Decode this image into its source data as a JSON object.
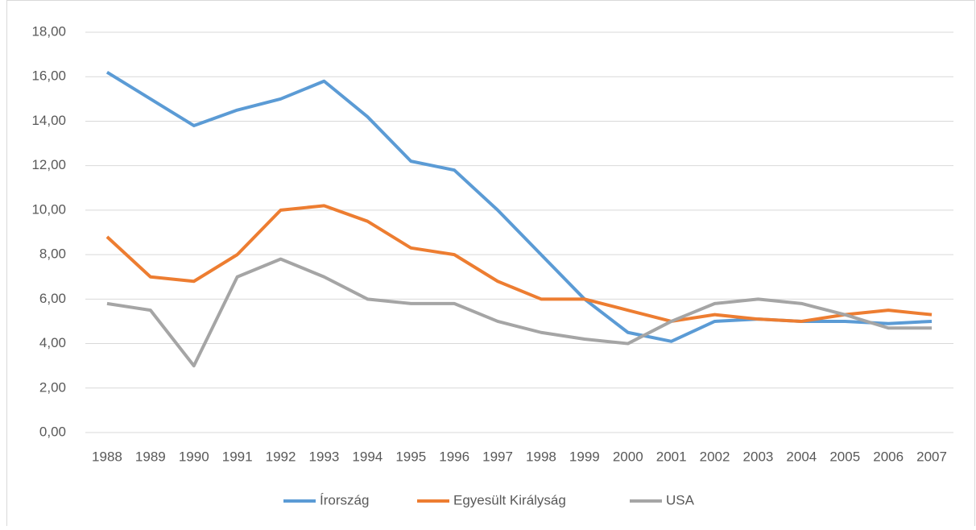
{
  "chart_data": {
    "type": "line",
    "categories": [
      "1988",
      "1989",
      "1990",
      "1991",
      "1992",
      "1993",
      "1994",
      "1995",
      "1996",
      "1997",
      "1998",
      "1999",
      "2000",
      "2001",
      "2002",
      "2003",
      "2004",
      "2005",
      "2006",
      "2007"
    ],
    "series": [
      {
        "name": "Írország",
        "color": "#5b9bd5",
        "values": [
          16.2,
          15.0,
          13.8,
          14.5,
          15.0,
          15.8,
          14.2,
          12.2,
          11.8,
          10.0,
          8.0,
          6.0,
          4.5,
          4.1,
          5.0,
          5.1,
          5.0,
          5.0,
          4.9,
          5.0
        ]
      },
      {
        "name": "Egyesült Királyság",
        "color": "#ed7d31",
        "values": [
          8.8,
          7.0,
          6.8,
          8.0,
          10.0,
          10.2,
          9.5,
          8.3,
          8.0,
          6.8,
          6.0,
          6.0,
          5.5,
          5.0,
          5.3,
          5.1,
          5.0,
          5.3,
          5.5,
          5.3
        ]
      },
      {
        "name": "USA",
        "color": "#a5a5a5",
        "values": [
          5.8,
          5.5,
          3.0,
          7.0,
          7.8,
          7.0,
          6.0,
          5.8,
          5.8,
          5.0,
          4.5,
          4.2,
          4.0,
          5.0,
          5.8,
          6.0,
          5.8,
          5.3,
          4.7,
          4.7
        ]
      }
    ],
    "ylim": [
      0,
      18
    ],
    "yticks": [
      {
        "value": 0,
        "label": "0,00"
      },
      {
        "value": 2,
        "label": "2,00"
      },
      {
        "value": 4,
        "label": "4,00"
      },
      {
        "value": 6,
        "label": "6,00"
      },
      {
        "value": 8,
        "label": "8,00"
      },
      {
        "value": 10,
        "label": "10,00"
      },
      {
        "value": 12,
        "label": "12,00"
      },
      {
        "value": 14,
        "label": "14,00"
      },
      {
        "value": 16,
        "label": "16,00"
      },
      {
        "value": 18,
        "label": "18,00"
      }
    ],
    "grid": true,
    "legend": "bottom"
  }
}
